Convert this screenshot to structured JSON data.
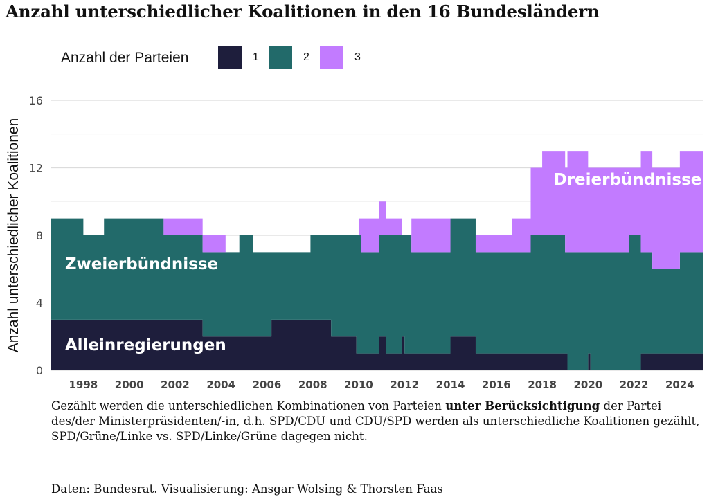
{
  "title": "Anzahl unterschiedlicher Koalitionen in den 16 Bundesländern",
  "legend": {
    "title": "Anzahl der Parteien",
    "items": [
      {
        "label": "1",
        "color": "#1e1e3c"
      },
      {
        "label": "2",
        "color": "#226a6a"
      },
      {
        "label": "3",
        "color": "#c27bff"
      }
    ]
  },
  "caption": {
    "text_before": "Gezählt werden die unterschiedlichen Kombinationen von Parteien ",
    "text_bold": "unter Berücksichtigung",
    "text_after": " der Partei des/der Ministerpräsidenten/-in, d.h. SPD/CDU und CDU/SPD werden als unterschiedliche Koalitionen gezählt, SPD/Grüne/Linke vs. SPD/Linke/Grüne dagegen nicht."
  },
  "source": "Daten: Bundesrat. Visualisierung: Ansgar Wolsing & Thorsten Faas",
  "chart_data": {
    "type": "area",
    "stacked": true,
    "step": true,
    "ylabel": "Anzahl unterschiedlicher Koalitionen",
    "xlabel": "",
    "xlim": [
      1996.6,
      2025.0
    ],
    "ylim": [
      0,
      16
    ],
    "yticks": [
      0,
      4,
      8,
      12,
      16
    ],
    "xticks": [
      1998,
      2000,
      2002,
      2004,
      2006,
      2008,
      2010,
      2012,
      2014,
      2016,
      2018,
      2020,
      2022,
      2024
    ],
    "grid": true,
    "legend_position": "top-left",
    "annotations": [
      {
        "text": "Alleinregierungen",
        "x": 1997.2,
        "y": 1.2
      },
      {
        "text": "Zweierbündnisse",
        "x": 1997.2,
        "y": 6.0
      },
      {
        "text": "Dreierbündnisse",
        "x": 2018.5,
        "y": 11.0
      }
    ],
    "series": [
      {
        "name": "1",
        "color": "#1e1e3c",
        "x": [
          1996.6,
          2003.2,
          2006.2,
          2008.8,
          2009.9,
          2010.9,
          2011.2,
          2011.9,
          2012.0,
          2012.3,
          2014.0,
          2015.1,
          2019.1,
          2020.0,
          2020.1,
          2022.3,
          2025.0
        ],
        "values": [
          3,
          2,
          3,
          2,
          1,
          2,
          1,
          2,
          1,
          1,
          2,
          1,
          0,
          1,
          0,
          1,
          1
        ]
      },
      {
        "name": "2",
        "color": "#226a6a",
        "x": [
          1996.6,
          1998.0,
          1998.9,
          2001.5,
          2003.2,
          2004.8,
          2005.4,
          2006.2,
          2007.9,
          2008.8,
          2009.9,
          2010.1,
          2011.2,
          2011.9,
          2012.0,
          2012.3,
          2014.0,
          2015.1,
          2017.5,
          2019.0,
          2019.1,
          2020.0,
          2020.1,
          2021.8,
          2022.3,
          2022.8,
          2024.0,
          2025.0
        ],
        "values": [
          6,
          5,
          6,
          5,
          5,
          6,
          5,
          4,
          5,
          6,
          7,
          6,
          7,
          6,
          7,
          6,
          7,
          6,
          7,
          6,
          7,
          6,
          7,
          8,
          6,
          5,
          6,
          7
        ]
      },
      {
        "name": "3",
        "color": "#c27bff",
        "x": [
          1996.6,
          2001.5,
          2003.2,
          2004.2,
          2009.9,
          2010.0,
          2010.1,
          2011.2,
          2011.9,
          2012.0,
          2012.3,
          2014.0,
          2015.1,
          2016.7,
          2017.5,
          2018.0,
          2019.1,
          2020.0,
          2021.8,
          2022.3,
          2022.8,
          2024.0,
          2025.0
        ],
        "values": [
          0,
          1,
          1,
          0,
          0,
          1,
          2,
          1,
          0,
          0,
          2,
          0,
          1,
          2,
          4,
          5,
          6,
          5,
          4,
          6,
          6,
          6,
          6
        ]
      }
    ]
  }
}
